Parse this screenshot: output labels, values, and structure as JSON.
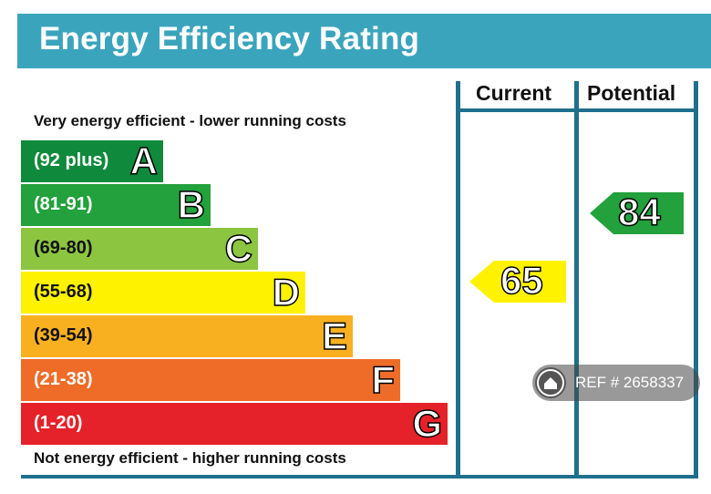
{
  "title": "Energy Efficiency Rating",
  "columns": {
    "current": "Current",
    "potential": "Potential"
  },
  "top_note": "Very energy efficient - lower running costs",
  "bottom_note": "Not energy efficient - higher running costs",
  "bands": [
    {
      "range": "(92 plus)",
      "letter": "A",
      "color": "#0f8a3c"
    },
    {
      "range": "(81-91)",
      "letter": "B",
      "color": "#22a13c"
    },
    {
      "range": "(69-80)",
      "letter": "C",
      "color": "#8cc540"
    },
    {
      "range": "(55-68)",
      "letter": "D",
      "color": "#fff200"
    },
    {
      "range": "(39-54)",
      "letter": "E",
      "color": "#f8b021"
    },
    {
      "range": "(21-38)",
      "letter": "F",
      "color": "#ee6c28"
    },
    {
      "range": "(1-20)",
      "letter": "G",
      "color": "#e52129"
    }
  ],
  "current": {
    "value": "65",
    "band": "D",
    "color": "#fff200"
  },
  "potential": {
    "value": "84",
    "band": "B",
    "color": "#22a13c"
  },
  "watermark": {
    "text": "REF # 2658337",
    "icon": "home-icon"
  }
}
